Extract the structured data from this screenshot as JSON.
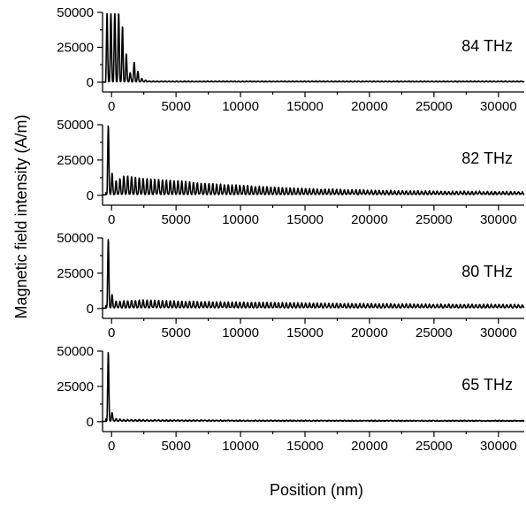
{
  "figure": {
    "ylabel": "Magnetic field intensity (A/m)",
    "xlabel": "Position (nm)"
  },
  "chart_data": {
    "type": "line",
    "xlabel": "Position (nm)",
    "ylabel": "Magnetic field intensity (A/m)",
    "xlim": [
      -700,
      32000
    ],
    "ylim": [
      -7000,
      50000
    ],
    "x_ticks": [
      "0",
      "5000",
      "10000",
      "15000",
      "20000",
      "25000",
      "30000"
    ],
    "x_tick_values": [
      0,
      5000,
      10000,
      15000,
      20000,
      25000,
      30000
    ],
    "y_ticks": [
      "0",
      "25000",
      "50000"
    ],
    "y_tick_values": [
      0,
      25000,
      50000
    ],
    "grid": false,
    "legend": "none",
    "panels": [
      {
        "label": "84 THz",
        "profile": {
          "peaks": [
            {
              "x": -350,
              "y": 50000
            },
            {
              "x": -200,
              "y": 50000
            },
            {
              "x": -50,
              "y": 50000
            },
            {
              "x": 100,
              "y": 50000
            },
            {
              "x": 250,
              "y": 50000
            },
            {
              "x": 400,
              "y": 50000
            },
            {
              "x": 550,
              "y": 50000
            },
            {
              "x": 700,
              "y": 46000
            },
            {
              "x": 850,
              "y": 40000
            },
            {
              "x": 1000,
              "y": 28000
            },
            {
              "x": 1150,
              "y": 20000
            },
            {
              "x": 1300,
              "y": 9000
            },
            {
              "x": 1500,
              "y": 6000
            },
            {
              "x": 1650,
              "y": 13000
            },
            {
              "x": 1800,
              "y": 15000
            },
            {
              "x": 1950,
              "y": 11000
            },
            {
              "x": 2100,
              "y": 6000
            },
            {
              "x": 2300,
              "y": 3000
            },
            {
              "x": 2600,
              "y": 1500
            },
            {
              "x": 3000,
              "y": 800
            }
          ],
          "baseline": 300
        }
      },
      {
        "label": "82 THz",
        "profile": {
          "peaks": [
            {
              "x": -250,
              "y": 50000
            },
            {
              "x": -80,
              "y": 23000
            },
            {
              "x": 150,
              "y": 9000
            },
            {
              "x": 1000,
              "y": 14000
            },
            {
              "x": 2000,
              "y": 12500
            },
            {
              "x": 3000,
              "y": 11500
            },
            {
              "x": 4000,
              "y": 11000
            },
            {
              "x": 5000,
              "y": 10500
            },
            {
              "x": 6000,
              "y": 9500
            },
            {
              "x": 7000,
              "y": 8500
            },
            {
              "x": 8000,
              "y": 8000
            },
            {
              "x": 9000,
              "y": 7500
            },
            {
              "x": 10000,
              "y": 7000
            },
            {
              "x": 12000,
              "y": 6000
            },
            {
              "x": 14000,
              "y": 5000
            },
            {
              "x": 16000,
              "y": 4500
            },
            {
              "x": 18000,
              "y": 4000
            },
            {
              "x": 20000,
              "y": 3500
            },
            {
              "x": 22000,
              "y": 3200
            },
            {
              "x": 24000,
              "y": 3000
            },
            {
              "x": 26000,
              "y": 2800
            },
            {
              "x": 28000,
              "y": 2700
            },
            {
              "x": 30000,
              "y": 2600
            },
            {
              "x": 32000,
              "y": 2400
            }
          ],
          "baseline": 800
        }
      },
      {
        "label": "80 THz",
        "profile": {
          "peaks": [
            {
              "x": -250,
              "y": 50000
            },
            {
              "x": -80,
              "y": 15000
            },
            {
              "x": 150,
              "y": 5000
            },
            {
              "x": 1000,
              "y": 5500
            },
            {
              "x": 2500,
              "y": 6000
            },
            {
              "x": 4000,
              "y": 5500
            },
            {
              "x": 6000,
              "y": 5000
            },
            {
              "x": 8000,
              "y": 4700
            },
            {
              "x": 10000,
              "y": 4500
            },
            {
              "x": 14000,
              "y": 4000
            },
            {
              "x": 18000,
              "y": 3500
            },
            {
              "x": 22000,
              "y": 3200
            },
            {
              "x": 26000,
              "y": 3000
            },
            {
              "x": 30000,
              "y": 2800
            },
            {
              "x": 32000,
              "y": 2600
            }
          ],
          "baseline": 700
        }
      },
      {
        "label": "65 THz",
        "profile": {
          "peaks": [
            {
              "x": -250,
              "y": 50000
            },
            {
              "x": -100,
              "y": 12000
            },
            {
              "x": 150,
              "y": 2500
            },
            {
              "x": 1000,
              "y": 1500
            },
            {
              "x": 5000,
              "y": 1200
            },
            {
              "x": 10000,
              "y": 1000
            },
            {
              "x": 20000,
              "y": 900
            },
            {
              "x": 32000,
              "y": 800
            }
          ],
          "baseline": 500
        }
      }
    ]
  }
}
